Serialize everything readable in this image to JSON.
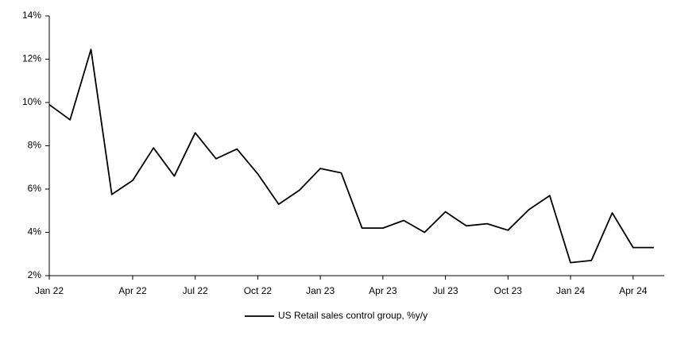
{
  "chart_data": {
    "type": "line",
    "categories": [
      "Jan 22",
      null,
      null,
      null,
      "Apr 22",
      null,
      null,
      "Jul 22",
      null,
      null,
      "Oct 22",
      null,
      null,
      "Jan 23",
      null,
      null,
      "Apr 23",
      null,
      null,
      "Jul 23",
      null,
      null,
      "Oct 23",
      null,
      null,
      "Jan 24",
      null,
      null,
      "Apr 24",
      null
    ],
    "series": [
      {
        "name": "US Retail sales control group, %y/y",
        "color": "#000000",
        "values": [
          9.9,
          9.2,
          12.45,
          5.75,
          6.4,
          7.9,
          6.6,
          8.6,
          7.4,
          7.85,
          6.7,
          5.3,
          5.95,
          6.95,
          6.75,
          4.2,
          4.2,
          4.55,
          4.0,
          4.95,
          4.3,
          4.4,
          4.1,
          5.05,
          5.7,
          2.6,
          2.7,
          4.9,
          3.3,
          3.3
        ]
      }
    ],
    "ylim": [
      2,
      14
    ],
    "yticks": [
      {
        "value": 2,
        "label": "2%"
      },
      {
        "value": 4,
        "label": "4%"
      },
      {
        "value": 6,
        "label": "6%"
      },
      {
        "value": 8,
        "label": "8%"
      },
      {
        "value": 10,
        "label": "10%"
      },
      {
        "value": 12,
        "label": "12%"
      },
      {
        "value": 14,
        "label": "14%"
      }
    ],
    "grid": false,
    "legend": "bottom"
  }
}
